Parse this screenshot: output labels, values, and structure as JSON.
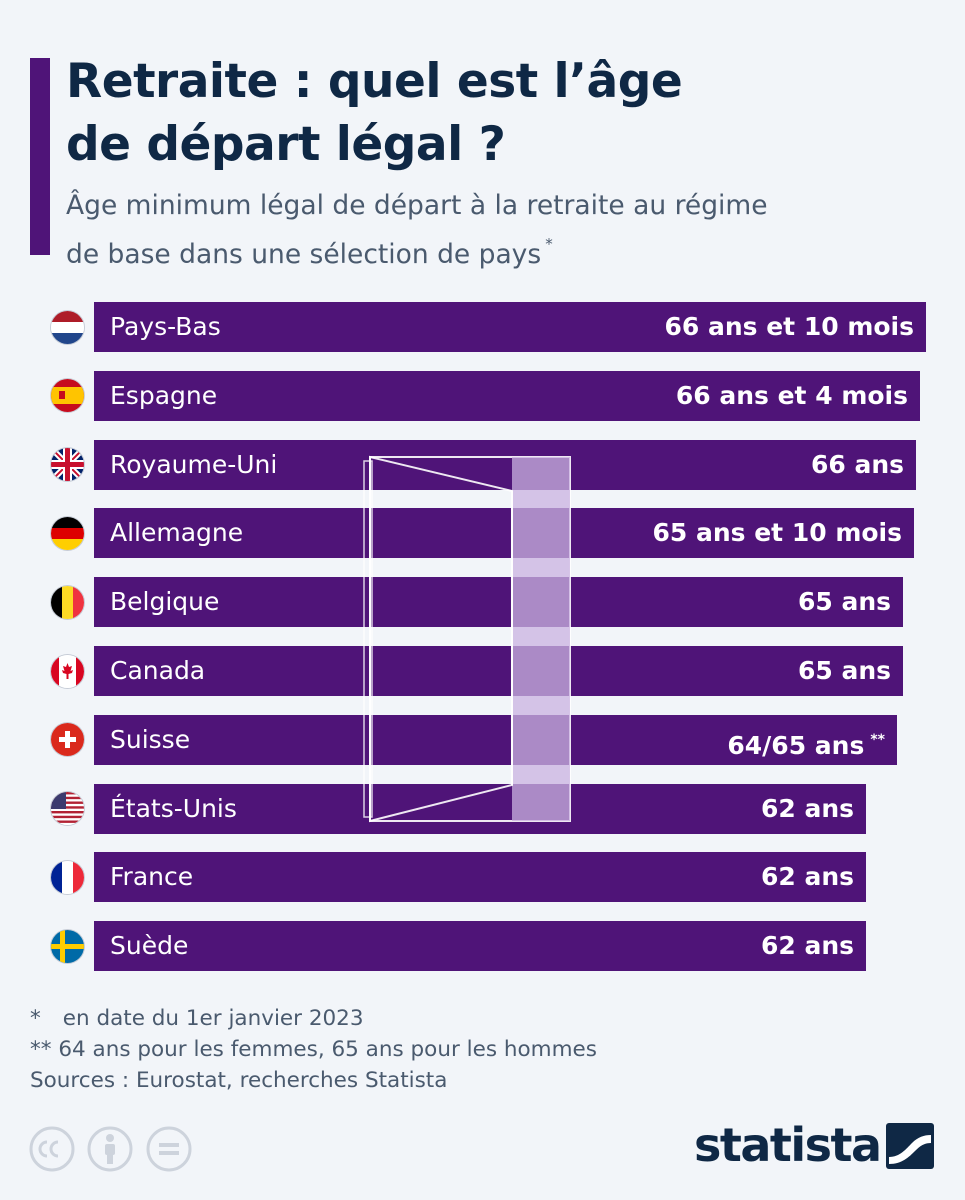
{
  "header": {
    "title_line1": "Retraite : quel est l’âge",
    "title_line2": "de départ légal ?",
    "subtitle_line1": "Âge minimum légal de départ à la retraite au régime",
    "subtitle_line2": "de base dans une sélection de pays",
    "subtitle_marker": "*"
  },
  "chart_data": {
    "type": "bar",
    "orientation": "horizontal",
    "title": "Retraite : quel est l’âge de départ légal ?",
    "xlabel": "",
    "ylabel": "",
    "unit": "years",
    "xlim": [
      0,
      67
    ],
    "categories": [
      "Pays-Bas",
      "Espagne",
      "Royaume-Uni",
      "Allemagne",
      "Belgique",
      "Canada",
      "Suisse",
      "États-Unis",
      "France",
      "Suède"
    ],
    "values": [
      66.83,
      66.33,
      66,
      65.83,
      65,
      65,
      64.5,
      62,
      62,
      62
    ],
    "labels": [
      "66 ans et 10 mois",
      "66 ans et 4 mois",
      "66 ans",
      "65 ans et 10 mois",
      "65 ans",
      "65 ans",
      "64/65 ans",
      "62 ans",
      "62 ans",
      "62 ans"
    ],
    "label_markers": [
      "",
      "",
      "",
      "",
      "",
      "",
      "**",
      "",
      "",
      ""
    ],
    "flags": [
      "flag-netherlands-icon",
      "flag-spain-icon",
      "flag-uk-icon",
      "flag-germany-icon",
      "flag-belgium-icon",
      "flag-canada-icon",
      "flag-switzerland-icon",
      "flag-usa-icon",
      "flag-france-icon",
      "flag-sweden-icon"
    ],
    "bar_color": "#4f1478"
  },
  "notes": {
    "note1_marker": "*",
    "note1": "en date du 1er janvier 2023",
    "note2": "** 64 ans pour les femmes, 65 ans pour les hommes",
    "sources": "Sources : Eurostat, recherches Statista"
  },
  "brand": {
    "logo_text": "statista",
    "license_icons": [
      "cc-icon",
      "attribution-icon",
      "no-derivatives-icon"
    ]
  },
  "colors": {
    "accent": "#4f1478",
    "title": "#0f2845",
    "text_muted": "#4a5a6e",
    "background": "#f2f5f9"
  }
}
